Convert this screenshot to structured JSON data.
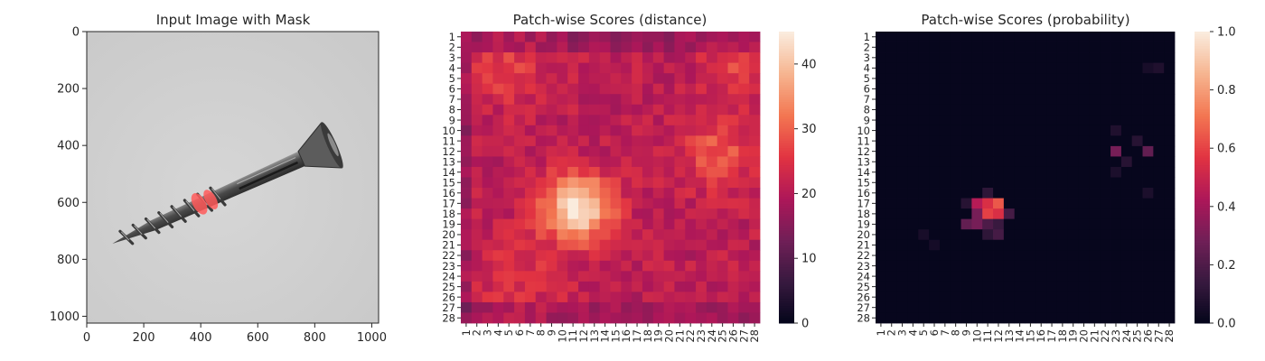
{
  "colormap": [
    "#03051a",
    "#36193e",
    "#701f57",
    "#ad1759",
    "#e13342",
    "#f37651",
    "#f6b48f",
    "#faebdd"
  ],
  "axis_color": "#262626",
  "chart_data": [
    {
      "type": "image",
      "title": "Input Image with Mask",
      "xlabel": "",
      "ylabel": "",
      "x_ticks": [
        "0",
        "200",
        "400",
        "600",
        "800",
        "1000"
      ],
      "y_ticks": [
        "0",
        "200",
        "400",
        "600",
        "800",
        "1000"
      ],
      "xlim": [
        0,
        1024
      ],
      "ylim": [
        1024,
        0
      ],
      "image": {
        "background": "#c9c9c9",
        "object": "screw",
        "screw_head": [
          880,
          390
        ],
        "screw_tip": [
          90,
          745
        ],
        "mask_color": "#ff5a5a",
        "mask_region": [
          {
            "x": 395,
            "y": 605
          },
          {
            "x": 435,
            "y": 590
          }
        ]
      }
    },
    {
      "type": "heatmap",
      "title": "Patch-wise Scores (distance)",
      "rows": 28,
      "cols": 28,
      "tick_labels": [
        "1",
        "2",
        "3",
        "4",
        "5",
        "6",
        "7",
        "8",
        "9",
        "10",
        "11",
        "12",
        "13",
        "14",
        "15",
        "16",
        "17",
        "18",
        "19",
        "20",
        "21",
        "22",
        "23",
        "24",
        "25",
        "26",
        "27",
        "28"
      ],
      "colorbar_ticks": [
        "0",
        "10",
        "20",
        "30",
        "40"
      ],
      "vmin": 0,
      "vmax": 45,
      "base_value": 21,
      "hotspots": [
        {
          "row": 17.5,
          "col": 11.5,
          "peak": 45,
          "spread": 2.2
        },
        {
          "row": 12,
          "col": 24.5,
          "peak": 8,
          "spread": 2.5
        },
        {
          "row": 4,
          "col": 5,
          "peak": 6,
          "spread": 2.5
        },
        {
          "row": 4,
          "col": 26,
          "peak": 6,
          "spread": 2
        },
        {
          "row": 24,
          "col": 6,
          "peak": 4,
          "spread": 3
        }
      ]
    },
    {
      "type": "heatmap",
      "title": "Patch-wise Scores (probability)",
      "rows": 28,
      "cols": 28,
      "tick_labels": [
        "1",
        "2",
        "3",
        "4",
        "5",
        "6",
        "7",
        "8",
        "9",
        "10",
        "11",
        "12",
        "13",
        "14",
        "15",
        "16",
        "17",
        "18",
        "19",
        "20",
        "21",
        "22",
        "23",
        "24",
        "25",
        "26",
        "27",
        "28"
      ],
      "colorbar_ticks": [
        "0.0",
        "0.2",
        "0.4",
        "0.6",
        "0.8",
        "1.0"
      ],
      "vmin": 0,
      "vmax": 1,
      "cells": [
        {
          "row": 17,
          "col": 10,
          "value": 0.45
        },
        {
          "row": 17,
          "col": 11,
          "value": 0.55
        },
        {
          "row": 17,
          "col": 12,
          "value": 0.65
        },
        {
          "row": 18,
          "col": 10,
          "value": 0.3
        },
        {
          "row": 18,
          "col": 11,
          "value": 0.6
        },
        {
          "row": 18,
          "col": 12,
          "value": 0.55
        },
        {
          "row": 18,
          "col": 13,
          "value": 0.18
        },
        {
          "row": 19,
          "col": 9,
          "value": 0.25
        },
        {
          "row": 19,
          "col": 10,
          "value": 0.3
        },
        {
          "row": 19,
          "col": 11,
          "value": 0.2
        },
        {
          "row": 19,
          "col": 12,
          "value": 0.15
        },
        {
          "row": 20,
          "col": 11,
          "value": 0.12
        },
        {
          "row": 20,
          "col": 12,
          "value": 0.18
        },
        {
          "row": 16,
          "col": 11,
          "value": 0.12
        },
        {
          "row": 17,
          "col": 9,
          "value": 0.1
        },
        {
          "row": 12,
          "col": 23,
          "value": 0.3
        },
        {
          "row": 12,
          "col": 26,
          "value": 0.25
        },
        {
          "row": 11,
          "col": 25,
          "value": 0.1
        },
        {
          "row": 13,
          "col": 24,
          "value": 0.1
        },
        {
          "row": 10,
          "col": 23,
          "value": 0.08
        },
        {
          "row": 4,
          "col": 27,
          "value": 0.08
        },
        {
          "row": 4,
          "col": 26,
          "value": 0.06
        },
        {
          "row": 16,
          "col": 26,
          "value": 0.07
        },
        {
          "row": 20,
          "col": 5,
          "value": 0.06
        },
        {
          "row": 21,
          "col": 6,
          "value": 0.05
        },
        {
          "row": 14,
          "col": 23,
          "value": 0.07
        }
      ]
    }
  ]
}
